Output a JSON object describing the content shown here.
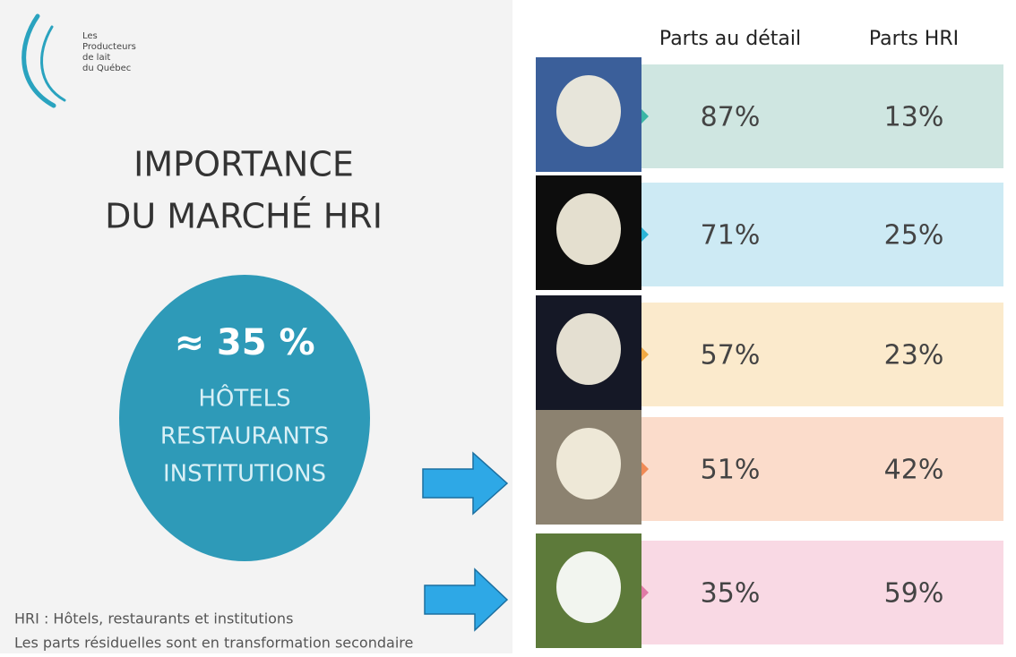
{
  "logo": {
    "lines": [
      "Les",
      "Producteurs",
      "de lait",
      "du Québec"
    ]
  },
  "title": [
    "IMPORTANCE",
    "DU MARCHÉ HRI"
  ],
  "circle": {
    "value": "≈ 35 %",
    "lines": [
      "HÔTELS",
      "RESTAURANTS",
      "INSTITUTIONS"
    ]
  },
  "footnotes": [
    "HRI : Hôtels, restaurants et institutions",
    "Les parts résiduelles sont en transformation secondaire"
  ],
  "table": {
    "columns": [
      "Parts au détail",
      "Parts HRI"
    ],
    "rows": [
      [
        "87%",
        "13%"
      ],
      [
        "71%",
        "25%"
      ],
      [
        "57%",
        "23%"
      ],
      [
        "51%",
        "42%"
      ],
      [
        "35%",
        "59%"
      ]
    ]
  }
}
